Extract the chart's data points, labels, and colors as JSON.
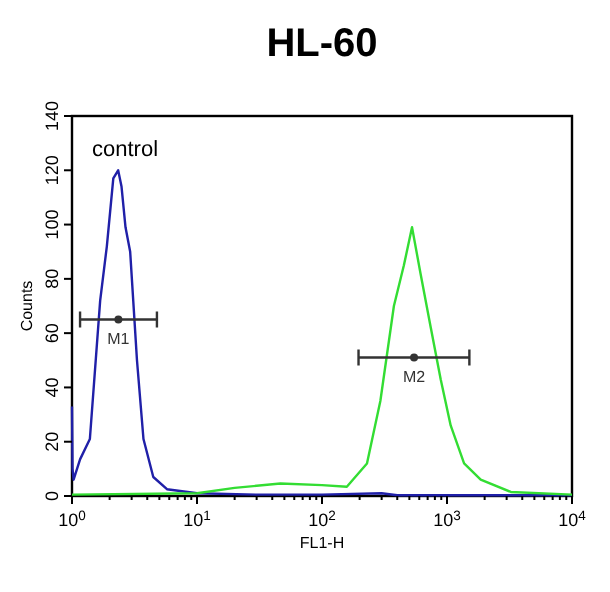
{
  "chart_data": {
    "type": "line",
    "title": "HL-60",
    "xlabel": "FL1-H",
    "ylabel": "Counts",
    "log": "x",
    "xlim": [
      1,
      10000
    ],
    "ylim": [
      0,
      140
    ],
    "yticks": [
      0,
      20,
      40,
      60,
      80,
      100,
      120,
      140
    ],
    "xticks": [
      {
        "value": 1,
        "label": "10$^{0}$"
      },
      {
        "value": 2,
        "label": null
      },
      {
        "value": 3,
        "label": null
      },
      {
        "value": 4,
        "label": null
      },
      {
        "value": 5,
        "label": null
      },
      {
        "value": 6,
        "label": null
      },
      {
        "value": 7,
        "label": null
      },
      {
        "value": 8,
        "label": null
      },
      {
        "value": 9,
        "label": null
      },
      {
        "value": 10,
        "label": "10$^{1}$"
      },
      {
        "value": 20,
        "label": null
      },
      {
        "value": 30,
        "label": null
      },
      {
        "value": 40,
        "label": null
      },
      {
        "value": 50,
        "label": null
      },
      {
        "value": 60,
        "label": null
      },
      {
        "value": 70,
        "label": null
      },
      {
        "value": 80,
        "label": null
      },
      {
        "value": 90,
        "label": null
      },
      {
        "value": 100,
        "label": "10$^{2}$"
      },
      {
        "value": 200,
        "label": null
      },
      {
        "value": 300,
        "label": null
      },
      {
        "value": 400,
        "label": null
      },
      {
        "value": 500,
        "label": null
      },
      {
        "value": 600,
        "label": null
      },
      {
        "value": 700,
        "label": null
      },
      {
        "value": 800,
        "label": null
      },
      {
        "value": 900,
        "label": null
      },
      {
        "value": 1000,
        "label": "10$^{3}$"
      },
      {
        "value": 2000,
        "label": null
      },
      {
        "value": 3000,
        "label": null
      },
      {
        "value": 4000,
        "label": null
      },
      {
        "value": 5000,
        "label": null
      },
      {
        "value": 6000,
        "label": null
      },
      {
        "value": 7000,
        "label": null
      },
      {
        "value": 8000,
        "label": null
      },
      {
        "value": 9000,
        "label": null
      },
      {
        "value": 10000,
        "label": "10$^{4}$"
      }
    ],
    "grid": false,
    "marker": "none",
    "line_style": "solid",
    "series": [
      {
        "color": "#2020a8",
        "x": [
          1,
          1.01,
          1.03,
          1.16,
          1.39,
          1.68,
          1.9,
          2.14,
          2.34,
          2.49,
          2.68,
          2.92,
          3.31,
          3.73,
          4.47,
          5.75,
          10,
          30,
          100,
          300,
          400,
          1000,
          10000
        ],
        "values": [
          33,
          10,
          6,
          13.5,
          21,
          72,
          92,
          117,
          120,
          114,
          99,
          90,
          50,
          21,
          7,
          2.5,
          1,
          0.5,
          0.5,
          1,
          0.3,
          0.3,
          0.3
        ]
      },
      {
        "color": "#33dd33",
        "x": [
          1,
          10,
          20,
          46.5,
          100,
          158,
          229,
          293,
          376,
          452,
          525,
          614,
          742,
          890,
          1070,
          1370,
          1860,
          3240,
          10000
        ],
        "values": [
          0.5,
          1,
          3,
          4.6,
          4,
          3.4,
          12,
          35,
          70,
          85,
          99,
          82,
          62,
          43,
          26,
          12,
          6,
          1.5,
          0.5
        ]
      },
      {
        "type": "scatter",
        "marker": "circle",
        "name": "M1",
        "color": "#333333",
        "x": [
          2.35
        ],
        "values": [
          65
        ],
        "xerrors": [
          [
            1.16,
            4.78
          ]
        ]
      },
      {
        "type": "scatter",
        "marker": "circle",
        "name": "M2",
        "color": "#333333",
        "x": [
          545
        ],
        "values": [
          51
        ],
        "xerrors": [
          [
            196,
            1510
          ]
        ]
      }
    ],
    "annotations": [
      "control"
    ]
  }
}
